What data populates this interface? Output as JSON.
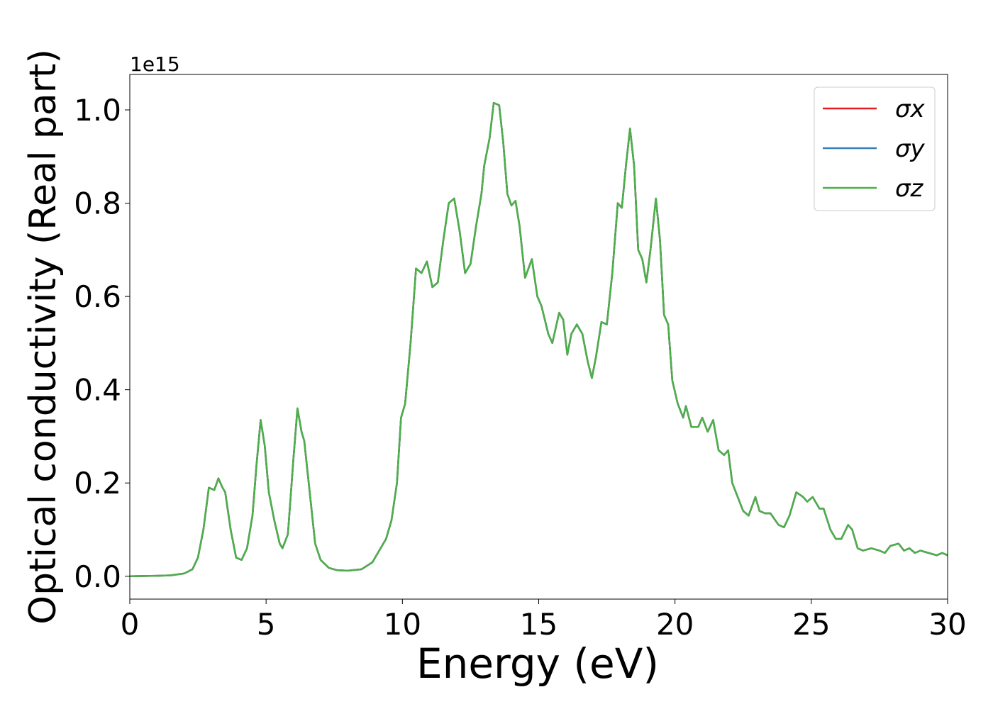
{
  "chart_data": {
    "type": "line",
    "xlabel": "Energy (eV)",
    "ylabel": "Optical conductivity (Real part)",
    "y_offset_label": "1e15",
    "x": [
      0,
      1,
      1.5,
      2,
      2.3,
      2.5,
      2.7,
      2.9,
      3.1,
      3.25,
      3.4,
      3.5,
      3.7,
      3.9,
      4.1,
      4.3,
      4.5,
      4.65,
      4.8,
      4.95,
      5.1,
      5.3,
      5.5,
      5.6,
      5.8,
      6.0,
      6.15,
      6.3,
      6.4,
      6.6,
      6.8,
      7.0,
      7.3,
      7.6,
      8.0,
      8.5,
      8.9,
      9.1,
      9.4,
      9.6,
      9.8,
      9.95,
      10.1,
      10.3,
      10.5,
      10.7,
      10.9,
      11.1,
      11.3,
      11.5,
      11.7,
      11.9,
      12.1,
      12.3,
      12.5,
      12.7,
      12.9,
      13.0,
      13.2,
      13.35,
      13.55,
      13.7,
      13.85,
      14.0,
      14.15,
      14.3,
      14.5,
      14.75,
      14.95,
      15.1,
      15.35,
      15.5,
      15.75,
      15.9,
      16.05,
      16.2,
      16.4,
      16.6,
      16.8,
      16.95,
      17.1,
      17.3,
      17.5,
      17.7,
      17.9,
      18.05,
      18.2,
      18.35,
      18.5,
      18.65,
      18.8,
      18.95,
      19.1,
      19.3,
      19.45,
      19.6,
      19.75,
      19.9,
      20.1,
      20.3,
      20.4,
      20.6,
      20.85,
      21.0,
      21.2,
      21.4,
      21.6,
      21.8,
      21.95,
      22.1,
      22.3,
      22.5,
      22.7,
      22.95,
      23.1,
      23.3,
      23.5,
      23.8,
      24.0,
      24.2,
      24.45,
      24.7,
      24.85,
      25.05,
      25.3,
      25.45,
      25.7,
      25.9,
      26.1,
      26.35,
      26.5,
      26.7,
      26.9,
      27.2,
      27.5,
      27.7,
      27.9,
      28.2,
      28.4,
      28.6,
      28.8,
      29.0,
      29.3,
      29.6,
      29.8,
      30
    ],
    "series": [
      {
        "name": "σx",
        "color": "#e41a1c",
        "values": [
          0,
          0.001,
          0.002,
          0.006,
          0.015,
          0.04,
          0.1,
          0.19,
          0.185,
          0.21,
          0.19,
          0.18,
          0.1,
          0.04,
          0.035,
          0.06,
          0.13,
          0.24,
          0.335,
          0.28,
          0.18,
          0.12,
          0.07,
          0.06,
          0.09,
          0.25,
          0.36,
          0.31,
          0.29,
          0.18,
          0.07,
          0.035,
          0.018,
          0.013,
          0.012,
          0.015,
          0.03,
          0.05,
          0.08,
          0.12,
          0.2,
          0.34,
          0.37,
          0.5,
          0.66,
          0.65,
          0.675,
          0.62,
          0.63,
          0.72,
          0.8,
          0.81,
          0.74,
          0.65,
          0.67,
          0.75,
          0.82,
          0.88,
          0.94,
          1.015,
          1.01,
          0.93,
          0.82,
          0.795,
          0.805,
          0.75,
          0.64,
          0.68,
          0.6,
          0.58,
          0.52,
          0.5,
          0.565,
          0.55,
          0.475,
          0.52,
          0.54,
          0.52,
          0.46,
          0.425,
          0.47,
          0.545,
          0.54,
          0.65,
          0.8,
          0.79,
          0.88,
          0.96,
          0.88,
          0.7,
          0.68,
          0.63,
          0.7,
          0.81,
          0.72,
          0.56,
          0.54,
          0.42,
          0.37,
          0.34,
          0.365,
          0.32,
          0.32,
          0.34,
          0.31,
          0.335,
          0.27,
          0.26,
          0.27,
          0.2,
          0.17,
          0.14,
          0.13,
          0.17,
          0.14,
          0.135,
          0.135,
          0.11,
          0.105,
          0.13,
          0.18,
          0.17,
          0.16,
          0.17,
          0.145,
          0.145,
          0.1,
          0.08,
          0.08,
          0.11,
          0.1,
          0.06,
          0.055,
          0.06,
          0.055,
          0.05,
          0.065,
          0.07,
          0.055,
          0.06,
          0.05,
          0.055,
          0.05,
          0.045,
          0.05,
          0.045
        ]
      },
      {
        "name": "σy",
        "color": "#377eb8",
        "values": [
          0,
          0.001,
          0.002,
          0.006,
          0.015,
          0.04,
          0.1,
          0.19,
          0.185,
          0.21,
          0.19,
          0.18,
          0.1,
          0.04,
          0.035,
          0.06,
          0.13,
          0.24,
          0.335,
          0.28,
          0.18,
          0.12,
          0.07,
          0.06,
          0.09,
          0.25,
          0.36,
          0.31,
          0.29,
          0.18,
          0.07,
          0.035,
          0.018,
          0.013,
          0.012,
          0.015,
          0.03,
          0.05,
          0.08,
          0.12,
          0.2,
          0.34,
          0.37,
          0.5,
          0.66,
          0.65,
          0.675,
          0.62,
          0.63,
          0.72,
          0.8,
          0.81,
          0.74,
          0.65,
          0.67,
          0.75,
          0.82,
          0.88,
          0.94,
          1.015,
          1.01,
          0.93,
          0.82,
          0.795,
          0.805,
          0.75,
          0.64,
          0.68,
          0.6,
          0.58,
          0.52,
          0.5,
          0.565,
          0.55,
          0.475,
          0.52,
          0.54,
          0.52,
          0.46,
          0.425,
          0.47,
          0.545,
          0.54,
          0.65,
          0.8,
          0.79,
          0.88,
          0.96,
          0.88,
          0.7,
          0.68,
          0.63,
          0.7,
          0.81,
          0.72,
          0.56,
          0.54,
          0.42,
          0.37,
          0.34,
          0.365,
          0.32,
          0.32,
          0.34,
          0.31,
          0.335,
          0.27,
          0.26,
          0.27,
          0.2,
          0.17,
          0.14,
          0.13,
          0.17,
          0.14,
          0.135,
          0.135,
          0.11,
          0.105,
          0.13,
          0.18,
          0.17,
          0.16,
          0.17,
          0.145,
          0.145,
          0.1,
          0.08,
          0.08,
          0.11,
          0.1,
          0.06,
          0.055,
          0.06,
          0.055,
          0.05,
          0.065,
          0.07,
          0.055,
          0.06,
          0.05,
          0.055,
          0.05,
          0.045,
          0.05,
          0.045
        ]
      },
      {
        "name": "σz",
        "color": "#4daf4a",
        "values": [
          0,
          0.001,
          0.002,
          0.006,
          0.015,
          0.04,
          0.1,
          0.19,
          0.185,
          0.21,
          0.19,
          0.18,
          0.1,
          0.04,
          0.035,
          0.06,
          0.13,
          0.24,
          0.335,
          0.28,
          0.18,
          0.12,
          0.07,
          0.06,
          0.09,
          0.25,
          0.36,
          0.31,
          0.29,
          0.18,
          0.07,
          0.035,
          0.018,
          0.013,
          0.012,
          0.015,
          0.03,
          0.05,
          0.08,
          0.12,
          0.2,
          0.34,
          0.37,
          0.5,
          0.66,
          0.65,
          0.675,
          0.62,
          0.63,
          0.72,
          0.8,
          0.81,
          0.74,
          0.65,
          0.67,
          0.75,
          0.82,
          0.88,
          0.94,
          1.015,
          1.01,
          0.93,
          0.82,
          0.795,
          0.805,
          0.75,
          0.64,
          0.68,
          0.6,
          0.58,
          0.52,
          0.5,
          0.565,
          0.55,
          0.475,
          0.52,
          0.54,
          0.52,
          0.46,
          0.425,
          0.47,
          0.545,
          0.54,
          0.65,
          0.8,
          0.79,
          0.88,
          0.96,
          0.88,
          0.7,
          0.68,
          0.63,
          0.7,
          0.81,
          0.72,
          0.56,
          0.54,
          0.42,
          0.37,
          0.34,
          0.365,
          0.32,
          0.32,
          0.34,
          0.31,
          0.335,
          0.27,
          0.26,
          0.27,
          0.2,
          0.17,
          0.14,
          0.13,
          0.17,
          0.14,
          0.135,
          0.135,
          0.11,
          0.105,
          0.13,
          0.18,
          0.17,
          0.16,
          0.17,
          0.145,
          0.145,
          0.1,
          0.08,
          0.08,
          0.11,
          0.1,
          0.06,
          0.055,
          0.06,
          0.055,
          0.05,
          0.065,
          0.07,
          0.055,
          0.06,
          0.05,
          0.055,
          0.05,
          0.045,
          0.05,
          0.045
        ]
      }
    ],
    "xlim": [
      0,
      30
    ],
    "xticks": [
      0,
      5,
      10,
      15,
      20,
      25,
      30
    ],
    "ylim": [
      -0.049,
      1.076
    ],
    "yticks": [
      {
        "value": 0,
        "label": "0.0"
      },
      0.2,
      0.4,
      0.6,
      0.8,
      {
        "value": 1,
        "label": "1.0"
      }
    ],
    "grid": false,
    "legend": "upper right"
  }
}
